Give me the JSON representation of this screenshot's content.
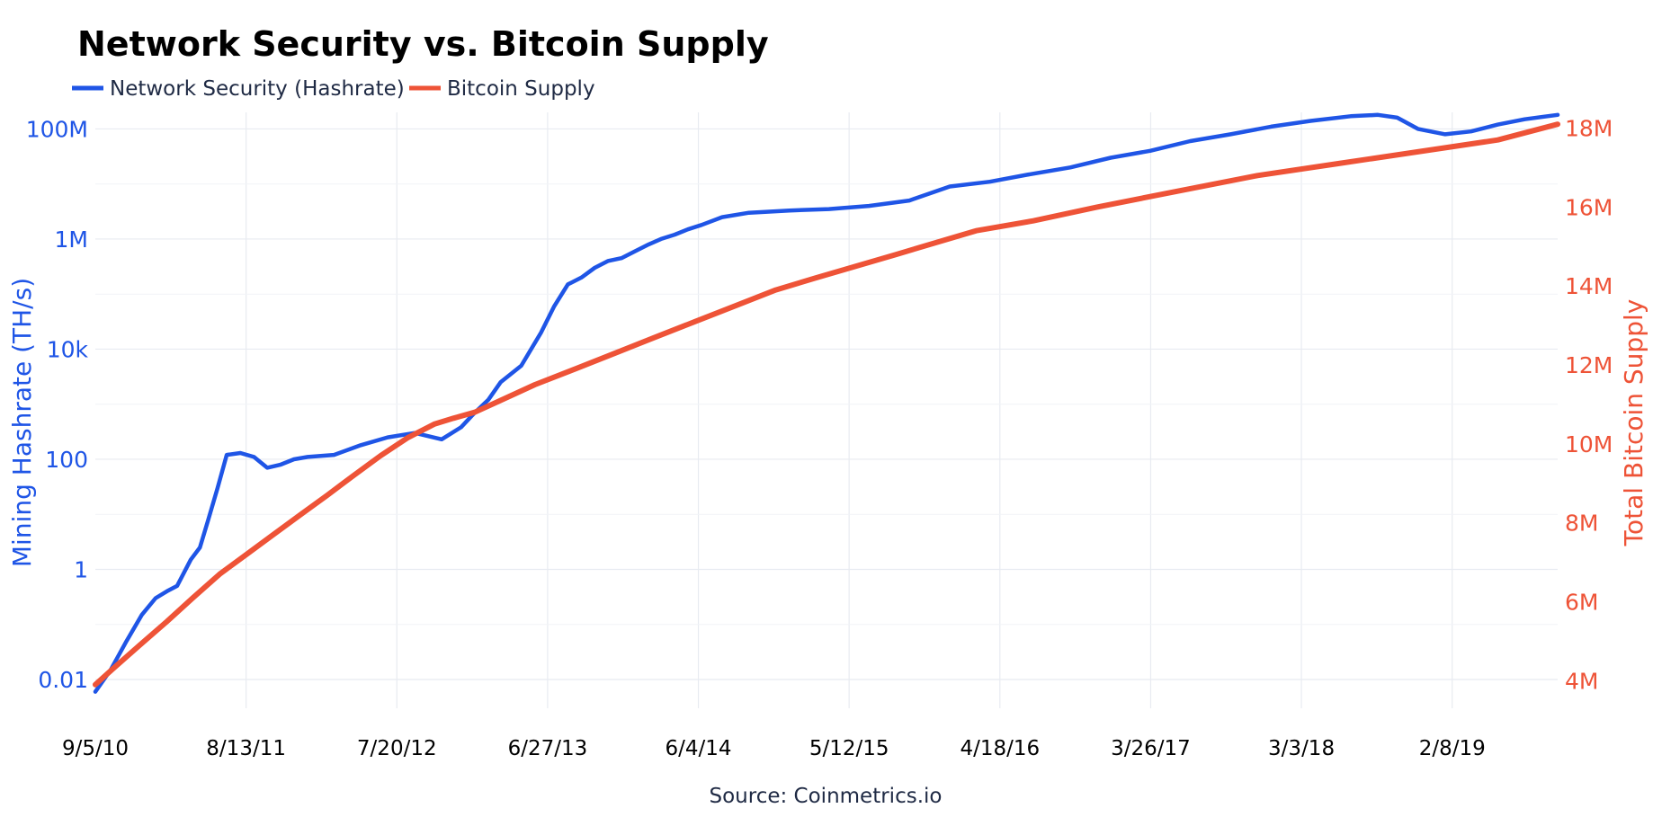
{
  "title": "Network Security vs. Bitcoin Supply",
  "source": "Source: Coinmetrics.io",
  "colors": {
    "hashrate": "#1f55e6",
    "supply": "#ee5337",
    "grid": "#e8ebf1"
  },
  "legend": {
    "items": [
      {
        "label": "Network Security (Hashrate)",
        "color": "#1f55e6"
      },
      {
        "label": "Bitcoin Supply",
        "color": "#ee5337"
      }
    ]
  },
  "chart_data": {
    "type": "line",
    "title": "Network Security vs. Bitcoin Supply",
    "x_tick_labels": [
      "9/5/10",
      "8/13/11",
      "7/20/12",
      "6/27/13",
      "6/4/14",
      "5/12/15",
      "4/18/16",
      "3/26/17",
      "3/3/18",
      "2/8/19"
    ],
    "xlim": [
      "2010-09-05",
      "2019-10-15"
    ],
    "y_left": {
      "label": "Mining Hashrate (TH/s)",
      "scale": "log",
      "ticks": [
        0.01,
        1,
        100,
        10000,
        1000000,
        100000000
      ],
      "tick_labels": [
        "0.01",
        "1",
        "100",
        "10k",
        "1M",
        "100M"
      ],
      "range": [
        0.003,
        200000000
      ]
    },
    "y_right": {
      "label": "Total Bitcoin Supply",
      "scale": "linear",
      "ticks": [
        4000000,
        6000000,
        8000000,
        10000000,
        12000000,
        14000000,
        16000000,
        18000000
      ],
      "tick_labels": [
        "4M",
        "6M",
        "8M",
        "10M",
        "12M",
        "14M",
        "16M",
        "18M"
      ],
      "range": [
        3300000,
        18400000
      ]
    },
    "grid": true,
    "legend_position": "top-left",
    "series": [
      {
        "name": "Network Security (Hashrate)",
        "axis": "left",
        "color": "#1f55e6",
        "x": [
          "2010-09-05",
          "2010-10-10",
          "2010-11-15",
          "2010-12-20",
          "2011-01-20",
          "2011-02-15",
          "2011-03-10",
          "2011-04-10",
          "2011-05-01",
          "2011-05-20",
          "2011-06-10",
          "2011-07-01",
          "2011-08-01",
          "2011-09-01",
          "2011-10-01",
          "2011-11-01",
          "2011-12-01",
          "2012-01-01",
          "2012-03-01",
          "2012-05-01",
          "2012-07-01",
          "2012-09-01",
          "2012-11-01",
          "2012-12-15",
          "2013-01-15",
          "2013-02-15",
          "2013-03-15",
          "2013-05-01",
          "2013-06-15",
          "2013-07-15",
          "2013-08-15",
          "2013-09-15",
          "2013-10-15",
          "2013-11-15",
          "2013-12-15",
          "2014-01-15",
          "2014-02-15",
          "2014-03-15",
          "2014-04-15",
          "2014-05-15",
          "2014-06-15",
          "2014-08-01",
          "2014-10-01",
          "2015-01-01",
          "2015-04-01",
          "2015-07-01",
          "2015-10-01",
          "2016-01-01",
          "2016-04-01",
          "2016-07-01",
          "2016-10-01",
          "2017-01-01",
          "2017-04-01",
          "2017-07-01",
          "2017-10-01",
          "2018-01-01",
          "2018-04-01",
          "2018-07-01",
          "2018-09-01",
          "2018-10-15",
          "2018-12-01",
          "2019-02-01",
          "2019-04-01",
          "2019-06-01",
          "2019-08-01",
          "2019-10-15"
        ],
        "values": [
          0.006,
          0.015,
          0.05,
          0.15,
          0.3,
          0.4,
          0.5,
          1.5,
          2.5,
          8,
          30,
          120,
          130,
          110,
          70,
          80,
          100,
          110,
          120,
          180,
          250,
          300,
          230,
          380,
          700,
          1200,
          2500,
          5000,
          20000,
          60000,
          150000,
          200000,
          300000,
          400000,
          450000,
          600000,
          800000,
          1000000,
          1200000,
          1500000,
          1800000,
          2500000,
          3000000,
          3300000,
          3500000,
          4000000,
          5000000,
          9000000,
          11000000,
          15000000,
          20000000,
          30000000,
          40000000,
          60000000,
          80000000,
          110000000,
          140000000,
          170000000,
          180000000,
          160000000,
          100000000,
          80000000,
          90000000,
          120000000,
          150000000,
          180000000
        ]
      },
      {
        "name": "Bitcoin Supply",
        "axis": "right",
        "color": "#ee5337",
        "x": [
          "2010-09-05",
          "2010-10-15",
          "2010-12-15",
          "2011-02-15",
          "2011-04-15",
          "2011-06-15",
          "2011-08-15",
          "2011-10-15",
          "2011-12-15",
          "2012-02-15",
          "2012-04-15",
          "2012-06-15",
          "2012-08-15",
          "2012-10-15",
          "2012-11-28",
          "2013-01-15",
          "2013-03-15",
          "2013-06-01",
          "2013-09-01",
          "2013-12-01",
          "2014-03-01",
          "2014-06-01",
          "2014-09-01",
          "2014-12-01",
          "2015-03-01",
          "2015-06-01",
          "2015-09-01",
          "2015-12-01",
          "2016-03-01",
          "2016-07-09",
          "2016-12-01",
          "2017-06-01",
          "2017-12-01",
          "2018-06-01",
          "2018-12-01",
          "2019-06-01",
          "2019-10-15"
        ],
        "values": [
          3900000,
          4300000,
          4900000,
          5500000,
          6100000,
          6700000,
          7200000,
          7700000,
          8200000,
          8700000,
          9200000,
          9700000,
          10150000,
          10500000,
          10650000,
          10800000,
          11100000,
          11500000,
          11900000,
          12300000,
          12700000,
          13100000,
          13500000,
          13900000,
          14200000,
          14500000,
          14800000,
          15100000,
          15400000,
          15650000,
          16000000,
          16400000,
          16800000,
          17100000,
          17400000,
          17700000,
          18100000
        ]
      }
    ]
  }
}
